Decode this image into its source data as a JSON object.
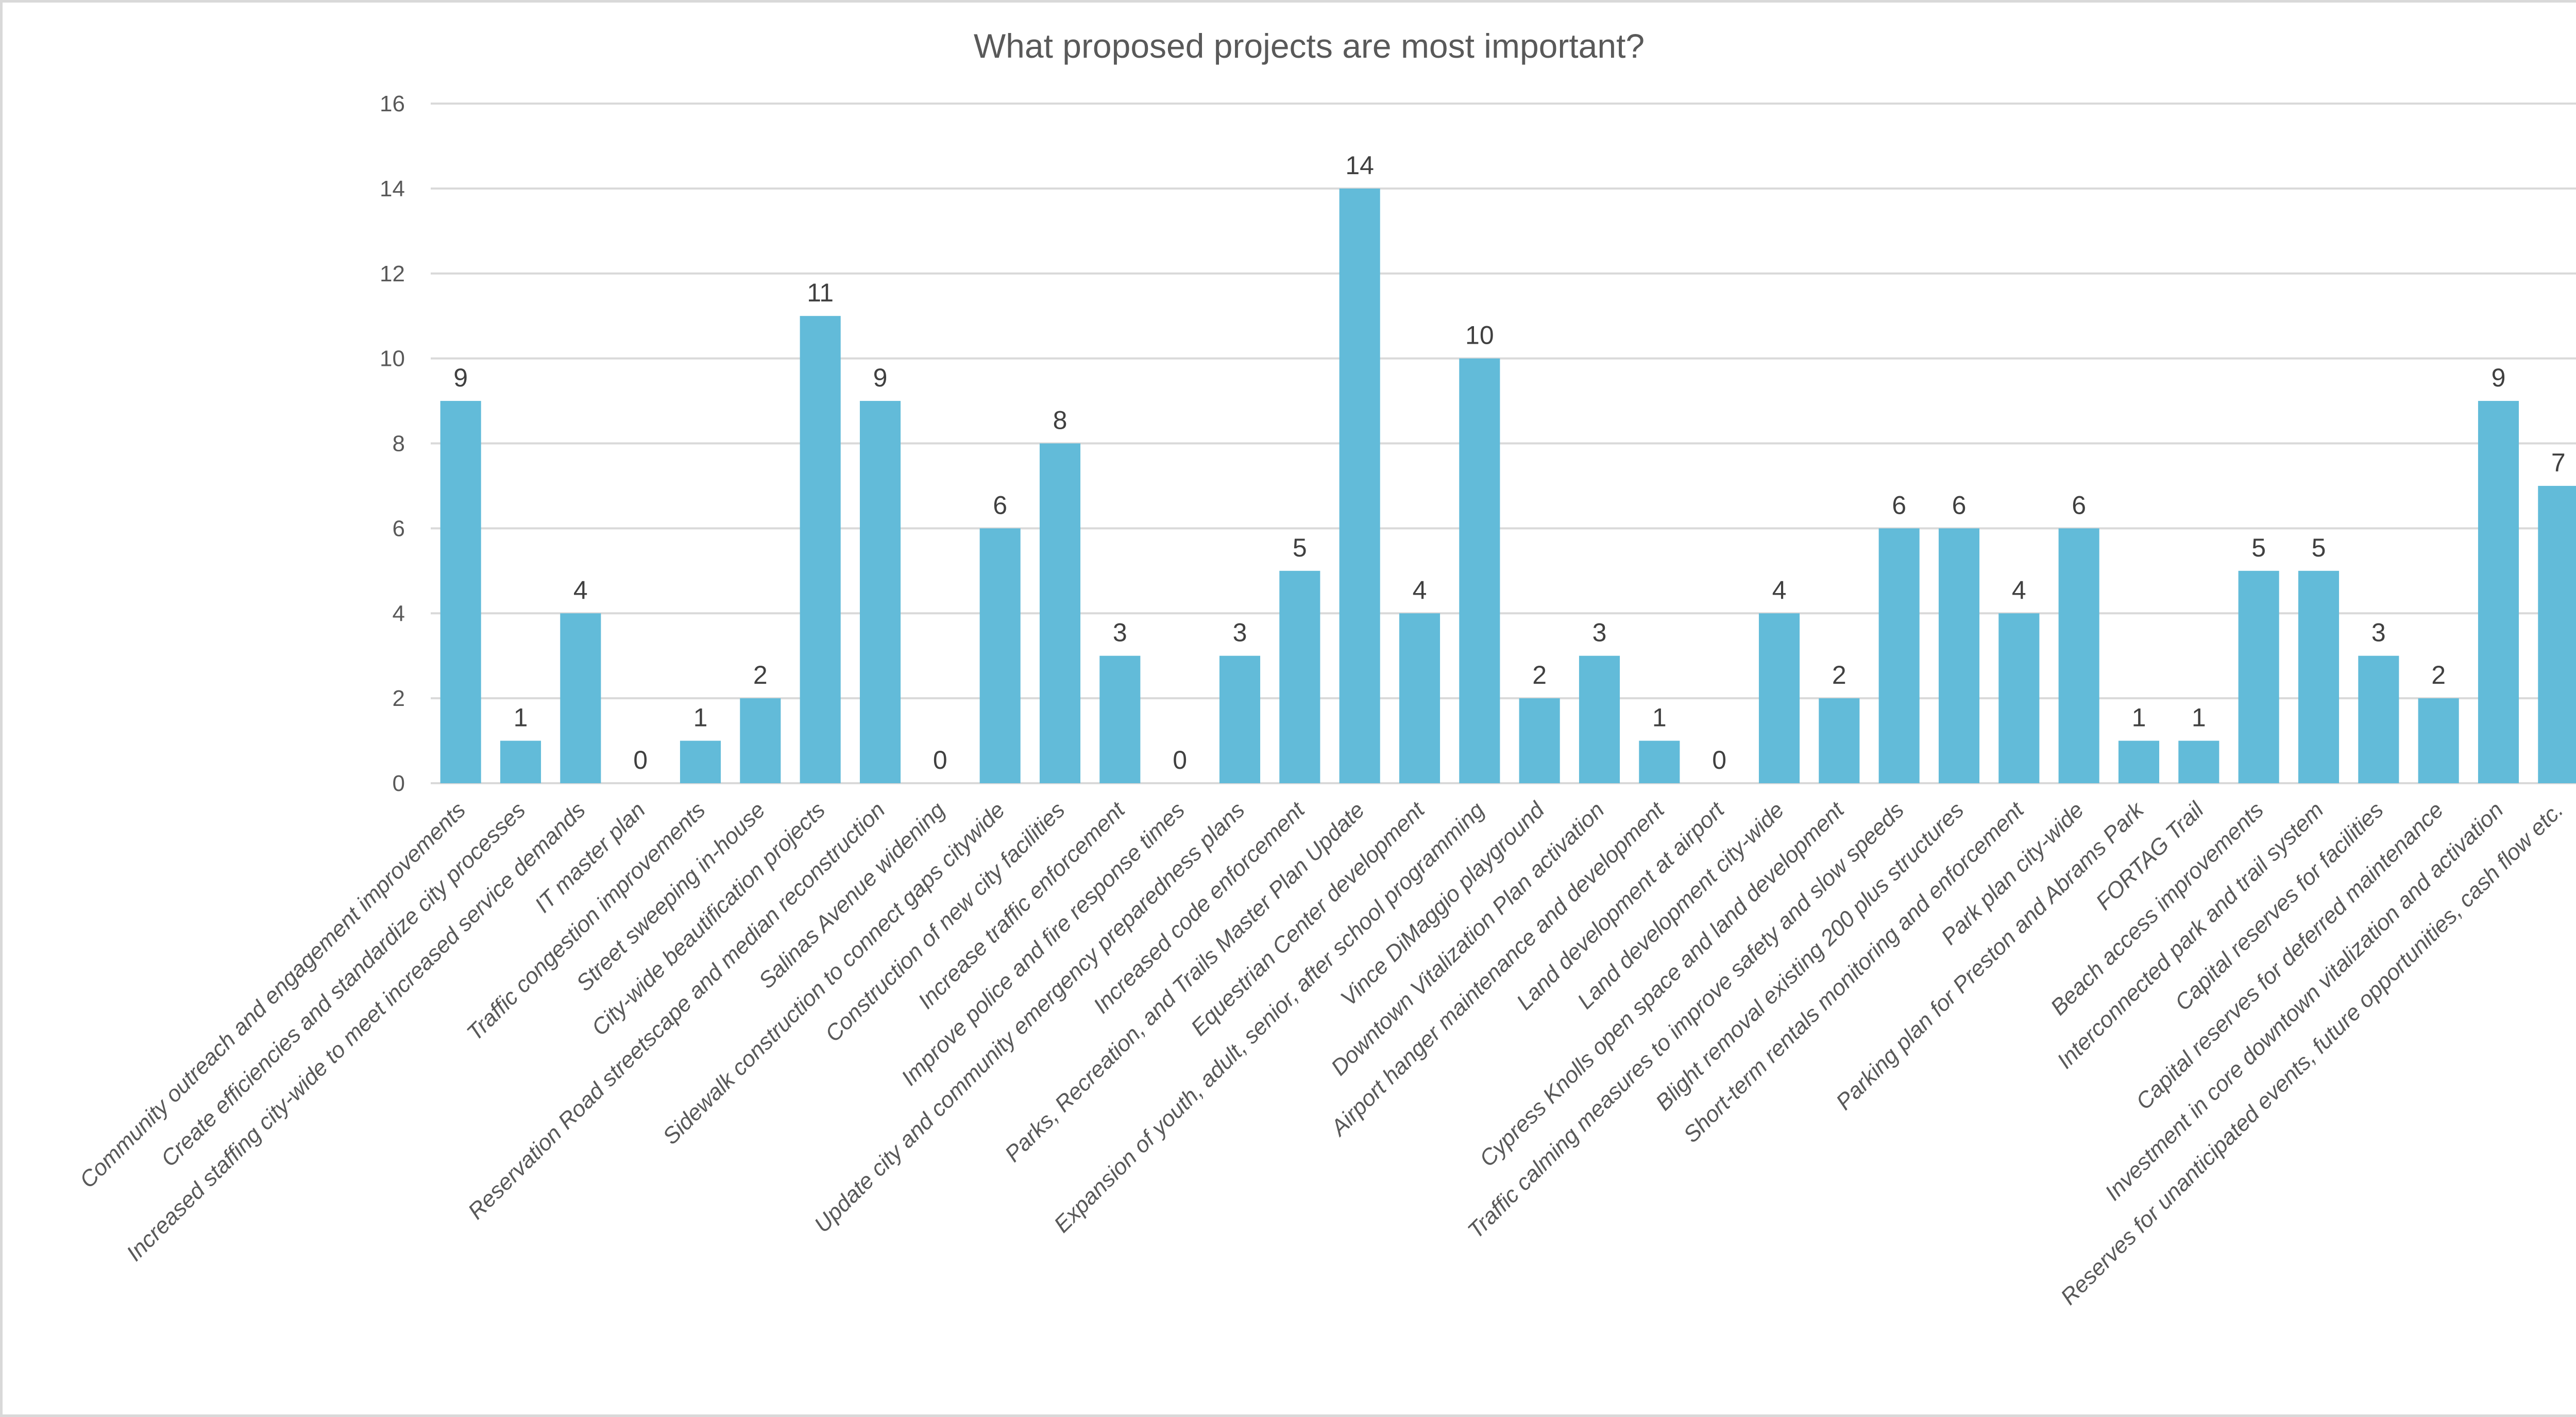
{
  "chart_data": {
    "type": "bar",
    "title": "What proposed projects are most important?",
    "xlabel": "",
    "ylabel": "",
    "ylim": [
      0,
      16
    ],
    "yticks": [
      0,
      2,
      4,
      6,
      8,
      10,
      12,
      14,
      16
    ],
    "grid": true,
    "legend": "none",
    "bar_color": "#62bbd9",
    "data_labels": true,
    "categories": [
      "Community outreach and engagement improvements",
      "Create efficiencies and standardize city processes",
      "Increased staffing city-wide to meet increased service demands",
      "IT master plan",
      "Traffic congestion improvements",
      "Street sweeping in-house",
      "City-wide beautification projects",
      "Reservation Road streetscape and median reconstruction",
      "Salinas Avenue widening",
      "Sidewalk construction to connect gaps citywide",
      "Construction of new city facilities",
      "Increase traffic enforcement",
      "Improve police and fire response times",
      "Update city and community emergency preparedness plans",
      "Increased code enforcement",
      "Parks, Recreation, and Trails Master Plan Update",
      "Equestrian Center development",
      "Expansion of youth, adult, senior, after school programming",
      "Vince DiMaggio playground",
      "Downtown Vitalization Plan activation",
      "Airport hanger maintenance and development",
      "Land development at airport",
      "Land development city-wide",
      "Cypress Knolls open space and land development",
      "Traffic calming measures to improve safety and slow speeds",
      "Blight removal existing 200 plus structures",
      "Short-term rentals monitoring and enforcement",
      "Park plan city-wide",
      "Parking plan for Preston and Abrams Park",
      "FORTAG Trail",
      "Beach access improvements",
      "Interconnected park and trail system",
      "Capital reserves for facilities",
      "Capital reserves for deferred maintenance",
      "Investment in core downtown vitalization and activation",
      "Reserves for unanticipated events, future opportunities, cash flow etc."
    ],
    "values": [
      9,
      1,
      4,
      0,
      1,
      2,
      11,
      9,
      0,
      6,
      8,
      3,
      0,
      3,
      5,
      14,
      4,
      10,
      2,
      3,
      1,
      0,
      4,
      2,
      6,
      6,
      4,
      6,
      1,
      1,
      5,
      5,
      3,
      2,
      9,
      7
    ]
  }
}
